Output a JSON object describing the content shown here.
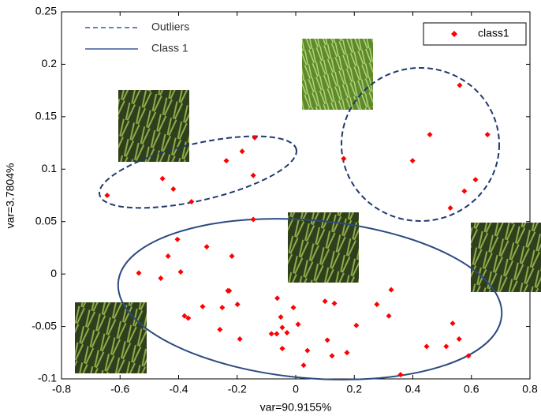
{
  "chart_data": {
    "type": "scatter",
    "xlabel": "var=90.9155%",
    "ylabel": "var=3.7804%",
    "annotations": [
      "Outliers",
      "Class 1"
    ],
    "legend": "upper right",
    "xlim": [
      -0.8,
      0.8
    ],
    "ylim": [
      -0.1,
      0.25
    ],
    "xticks": [
      -0.8,
      -0.6,
      -0.4,
      -0.2,
      0,
      0.2,
      0.4,
      0.6,
      0.8
    ],
    "yticks": [
      -0.1,
      -0.05,
      0,
      0.05,
      0.1,
      0.15,
      0.2,
      0.25
    ],
    "series": [
      {
        "name": "class1",
        "color": "#ff0000",
        "x": [
          -0.644,
          -0.455,
          -0.418,
          -0.356,
          -0.237,
          -0.183,
          -0.14,
          -0.145,
          -0.145,
          0.164,
          0.399,
          0.458,
          0.56,
          0.655,
          0.614,
          0.576,
          0.528,
          -0.536,
          -0.461,
          -0.436,
          -0.404,
          -0.393,
          -0.304,
          -0.218,
          -0.38,
          -0.367,
          -0.318,
          -0.251,
          -0.232,
          -0.227,
          -0.199,
          -0.259,
          -0.191,
          -0.063,
          -0.051,
          -0.008,
          -0.046,
          -0.083,
          -0.065,
          -0.03,
          0.008,
          -0.046,
          0.04,
          0.027,
          0.1,
          0.132,
          0.108,
          0.124,
          0.175,
          0.207,
          0.277,
          0.318,
          0.326,
          0.358,
          0.447,
          0.514,
          0.536,
          0.558,
          0.59
        ],
        "values": [
          0.075,
          0.091,
          0.081,
          0.069,
          0.108,
          0.117,
          0.13,
          0.094,
          0.052,
          0.11,
          0.108,
          0.133,
          0.18,
          0.133,
          0.09,
          0.079,
          0.063,
          0.001,
          -0.004,
          0.017,
          0.033,
          0.002,
          0.026,
          0.017,
          -0.04,
          -0.042,
          -0.031,
          -0.032,
          -0.016,
          -0.016,
          -0.029,
          -0.053,
          -0.062,
          -0.023,
          -0.041,
          -0.032,
          -0.051,
          -0.057,
          -0.057,
          -0.056,
          -0.048,
          -0.071,
          -0.073,
          -0.087,
          -0.026,
          -0.028,
          -0.063,
          -0.078,
          -0.075,
          -0.049,
          -0.029,
          -0.04,
          -0.015,
          -0.096,
          -0.069,
          -0.069,
          -0.047,
          -0.062,
          -0.078
        ]
      }
    ]
  }
}
